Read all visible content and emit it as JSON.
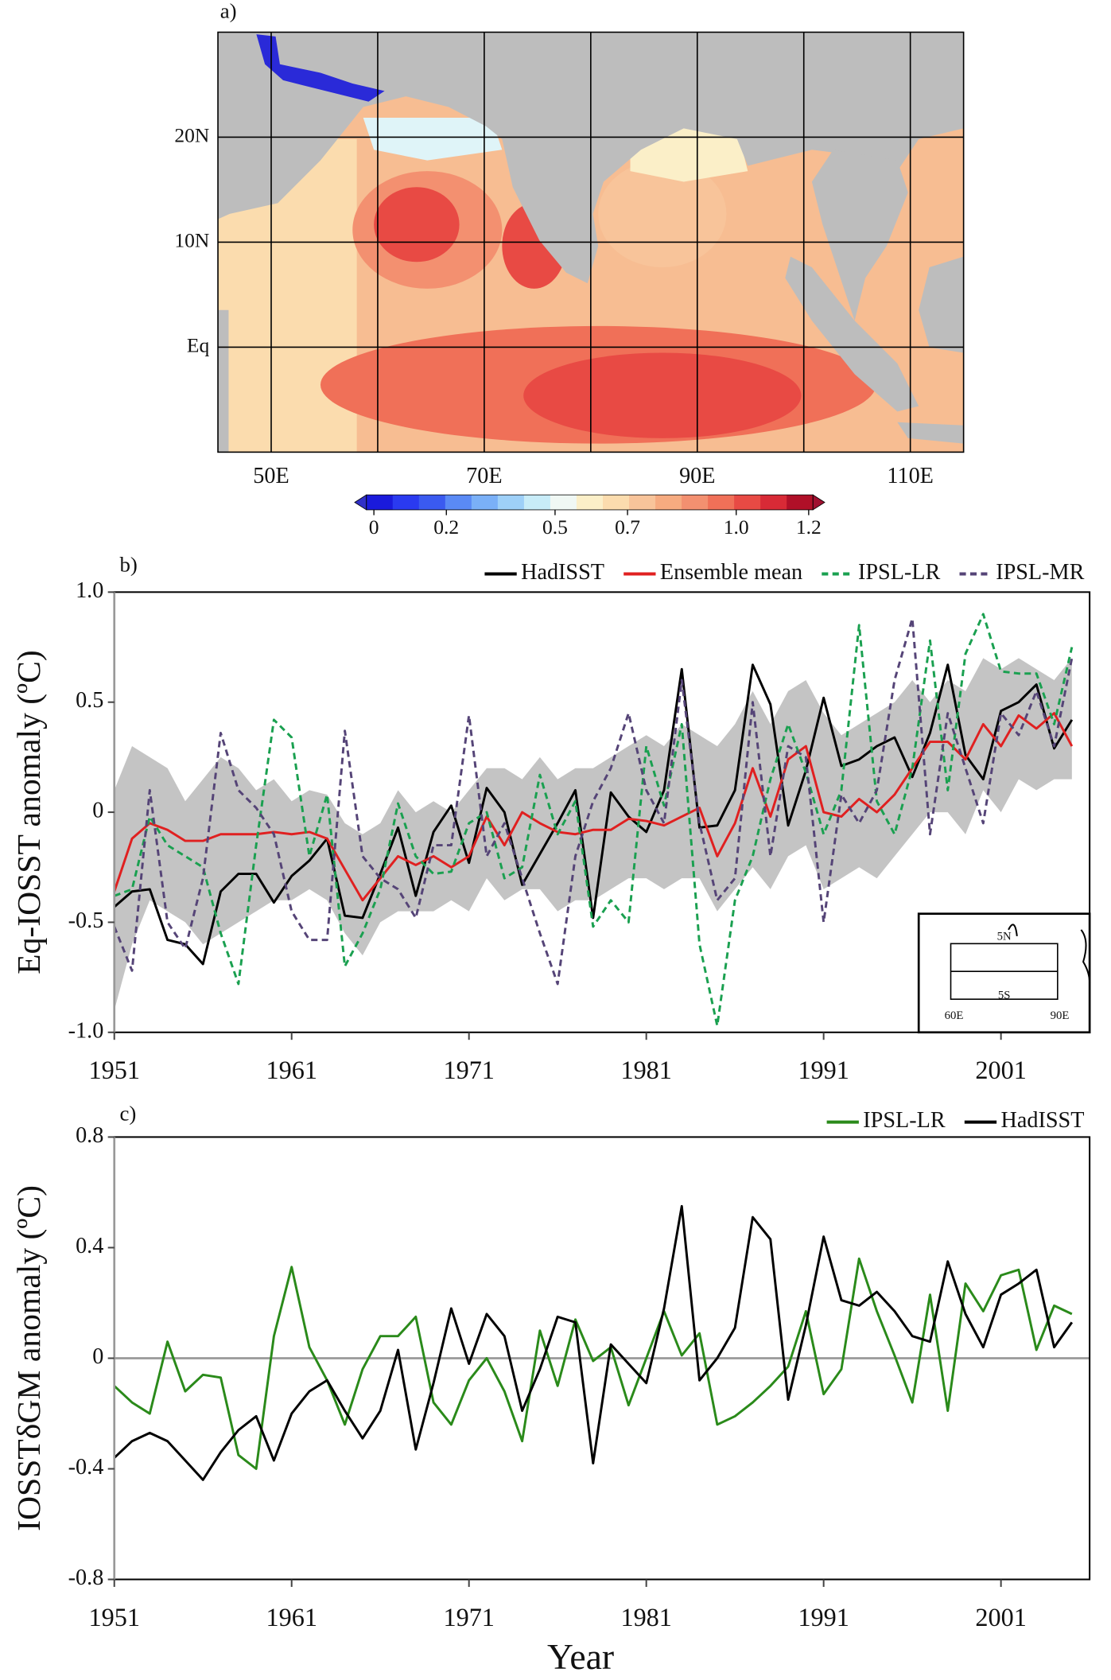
{
  "chart_data": [
    {
      "type": "map",
      "label": "a)",
      "xlim": [
        45,
        115
      ],
      "ylim": [
        -10,
        30
      ],
      "xticks": [
        {
          "value": 50,
          "label": "50E"
        },
        {
          "value": 70,
          "label": "70E"
        },
        {
          "value": 90,
          "label": "90E"
        },
        {
          "value": 110,
          "label": "110E"
        }
      ],
      "yticks": [
        {
          "value": 20,
          "label": "20N"
        },
        {
          "value": 10,
          "label": "10N"
        },
        {
          "value": 0,
          "label": "Eq"
        }
      ],
      "xgrid": [
        60,
        80,
        100
      ],
      "colorbar": {
        "lim": [
          0,
          1.2
        ],
        "ticks": [
          0,
          0.2,
          0.5,
          0.7,
          {
            "value": 1,
            "label": "1.0"
          },
          1.2
        ],
        "colors": [
          "#1a1adc",
          "#2a3af0",
          "#3a5af0",
          "#5a8af5",
          "#7ab0f7",
          "#9ed0f8",
          "#c8ecf8",
          "#f0f8f4",
          "#fbefc8",
          "#fbdcae",
          "#f8c49a",
          "#f6ab80",
          "#f39070",
          "#f07058",
          "#e84a44",
          "#d82a36",
          "#b01028"
        ],
        "under_color": "#3030c8",
        "over_color": "#a01030"
      }
    },
    {
      "type": "line",
      "label": "b)",
      "ylabel": "Eq-IOSST anomaly (ºC)",
      "xlim": [
        1951,
        2006
      ],
      "ylim": [
        -1,
        1
      ],
      "xticks": [
        1951,
        1961,
        1971,
        1981,
        1991,
        2001
      ],
      "yticks": [
        {
          "value": 1,
          "label": "1.0"
        },
        0.5,
        0,
        -0.5,
        {
          "value": -1,
          "label": "-1.0"
        }
      ],
      "x": [
        1951,
        1952,
        1953,
        1954,
        1955,
        1956,
        1957,
        1958,
        1959,
        1960,
        1961,
        1962,
        1963,
        1964,
        1965,
        1966,
        1967,
        1968,
        1969,
        1970,
        1971,
        1972,
        1973,
        1974,
        1975,
        1976,
        1977,
        1978,
        1979,
        1980,
        1981,
        1982,
        1983,
        1984,
        1985,
        1986,
        1987,
        1988,
        1989,
        1990,
        1991,
        1992,
        1993,
        1994,
        1995,
        1996,
        1997,
        1998,
        1999,
        2000,
        2001,
        2002,
        2003,
        2004,
        2005
      ],
      "band": {
        "color": "#c4c4c4",
        "upper": [
          0.1,
          0.3,
          0.25,
          0.2,
          0.05,
          0.15,
          0.25,
          0.2,
          0.1,
          0.15,
          0.05,
          0.1,
          0.08,
          -0.05,
          -0.1,
          -0.05,
          0.1,
          0.0,
          0.05,
          0.0,
          0.1,
          0.2,
          0.2,
          0.15,
          0.25,
          0.15,
          0.2,
          0.2,
          0.25,
          0.3,
          0.35,
          0.3,
          0.4,
          0.35,
          0.3,
          0.4,
          0.55,
          0.4,
          0.55,
          0.6,
          0.45,
          0.35,
          0.4,
          0.45,
          0.5,
          0.6,
          0.5,
          0.6,
          0.55,
          0.7,
          0.65,
          0.7,
          0.65,
          0.6,
          0.7
        ],
        "lower": [
          -0.9,
          -0.6,
          -0.4,
          -0.45,
          -0.5,
          -0.6,
          -0.55,
          -0.5,
          -0.45,
          -0.4,
          -0.4,
          -0.35,
          -0.4,
          -0.55,
          -0.65,
          -0.5,
          -0.45,
          -0.45,
          -0.45,
          -0.4,
          -0.45,
          -0.3,
          -0.4,
          -0.35,
          -0.35,
          -0.45,
          -0.4,
          -0.4,
          -0.35,
          -0.3,
          -0.3,
          -0.35,
          -0.3,
          -0.3,
          -0.45,
          -0.35,
          -0.25,
          -0.35,
          -0.2,
          -0.15,
          -0.35,
          -0.3,
          -0.25,
          -0.3,
          -0.2,
          -0.1,
          0.0,
          0.0,
          -0.1,
          0.1,
          0.0,
          0.15,
          0.1,
          0.15,
          0.15
        ]
      },
      "series": [
        {
          "name": "HadISST",
          "color": "#000000",
          "dash": false,
          "values": [
            -0.43,
            -0.36,
            -0.35,
            -0.58,
            -0.6,
            -0.69,
            -0.36,
            -0.28,
            -0.28,
            -0.41,
            -0.29,
            -0.22,
            -0.12,
            -0.47,
            -0.48,
            -0.28,
            -0.07,
            -0.38,
            -0.09,
            0.03,
            -0.23,
            0.11,
            0.0,
            -0.33,
            -0.19,
            -0.05,
            0.1,
            -0.48,
            0.09,
            -0.02,
            -0.09,
            0.1,
            0.65,
            -0.07,
            -0.06,
            0.1,
            0.67,
            0.49,
            -0.06,
            0.19,
            0.52,
            0.21,
            0.24,
            0.3,
            0.34,
            0.16,
            0.36,
            0.67,
            0.26,
            0.15,
            0.46,
            0.5,
            0.58,
            0.29,
            0.42
          ]
        },
        {
          "name": "Ensemble mean",
          "color": "#e02020",
          "dash": false,
          "values": [
            -0.36,
            -0.12,
            -0.05,
            -0.08,
            -0.13,
            -0.13,
            -0.1,
            -0.1,
            -0.1,
            -0.09,
            -0.1,
            -0.09,
            -0.12,
            -0.26,
            -0.4,
            -0.3,
            -0.2,
            -0.24,
            -0.2,
            -0.25,
            -0.2,
            -0.02,
            -0.15,
            0.0,
            -0.05,
            -0.09,
            -0.1,
            -0.08,
            -0.08,
            -0.03,
            -0.04,
            -0.06,
            -0.02,
            0.02,
            -0.2,
            -0.05,
            0.2,
            -0.02,
            0.24,
            0.3,
            0.0,
            -0.02,
            0.06,
            0.0,
            0.08,
            0.2,
            0.32,
            0.32,
            0.24,
            0.4,
            0.3,
            0.44,
            0.38,
            0.45,
            0.3
          ]
        },
        {
          "name": "IPSL-LR",
          "color": "#1aa050",
          "dash": true,
          "values": [
            -0.38,
            -0.35,
            -0.02,
            -0.15,
            -0.2,
            -0.25,
            -0.55,
            -0.78,
            -0.15,
            0.42,
            0.34,
            -0.2,
            0.08,
            -0.7,
            -0.55,
            -0.35,
            0.04,
            -0.2,
            -0.28,
            -0.27,
            -0.05,
            0.0,
            -0.3,
            -0.25,
            0.17,
            -0.1,
            0.05,
            -0.52,
            -0.4,
            -0.5,
            0.3,
            0.03,
            0.4,
            -0.6,
            -0.97,
            -0.4,
            -0.2,
            0.15,
            0.4,
            0.18,
            -0.1,
            0.1,
            0.85,
            0.05,
            -0.1,
            0.2,
            0.78,
            0.1,
            0.72,
            0.9,
            0.64,
            0.63,
            0.63,
            0.4,
            0.75
          ]
        },
        {
          "name": "IPSL-MR",
          "color": "#554477",
          "dash": true,
          "values": [
            -0.52,
            -0.72,
            0.1,
            -0.5,
            -0.62,
            -0.3,
            0.36,
            0.1,
            0.02,
            -0.1,
            -0.45,
            -0.58,
            -0.58,
            0.37,
            -0.2,
            -0.3,
            -0.35,
            -0.48,
            -0.15,
            -0.15,
            0.44,
            -0.2,
            -0.05,
            -0.3,
            -0.55,
            -0.78,
            -0.2,
            0.05,
            0.2,
            0.45,
            0.1,
            -0.05,
            0.6,
            -0.05,
            -0.4,
            -0.3,
            0.5,
            -0.2,
            0.3,
            0.25,
            -0.5,
            0.08,
            -0.05,
            0.1,
            0.6,
            0.88,
            -0.1,
            0.45,
            0.2,
            -0.05,
            0.45,
            0.35,
            0.55,
            0.3,
            0.7
          ]
        }
      ],
      "inset": {
        "labels": [
          "5N",
          "5S",
          "60E",
          "90E"
        ]
      }
    },
    {
      "type": "line",
      "label": "c)",
      "ylabel": "IOSSTδGM anomaly (ºC)",
      "xlabel": "Year",
      "zero_line": true,
      "xlim": [
        1951,
        2006
      ],
      "ylim": [
        -0.8,
        0.8
      ],
      "xticks": [
        1951,
        1961,
        1971,
        1981,
        1991,
        2001
      ],
      "yticks": [
        0.8,
        0.4,
        0,
        -0.4,
        -0.8
      ],
      "x": [
        1951,
        1952,
        1953,
        1954,
        1955,
        1956,
        1957,
        1958,
        1959,
        1960,
        1961,
        1962,
        1963,
        1964,
        1965,
        1966,
        1967,
        1968,
        1969,
        1970,
        1971,
        1972,
        1973,
        1974,
        1975,
        1976,
        1977,
        1978,
        1979,
        1980,
        1981,
        1982,
        1983,
        1984,
        1985,
        1986,
        1987,
        1988,
        1989,
        1990,
        1991,
        1992,
        1993,
        1994,
        1995,
        1996,
        1997,
        1998,
        1999,
        2000,
        2001,
        2002,
        2003,
        2004,
        2005
      ],
      "series": [
        {
          "name": "IPSL-LR",
          "color": "#2a8a1a",
          "dash": false,
          "values": [
            -0.1,
            -0.16,
            -0.2,
            0.06,
            -0.12,
            -0.06,
            -0.07,
            -0.35,
            -0.4,
            0.08,
            0.33,
            0.04,
            -0.08,
            -0.24,
            -0.04,
            0.08,
            0.08,
            0.15,
            -0.16,
            -0.24,
            -0.08,
            0.0,
            -0.12,
            -0.3,
            0.1,
            -0.1,
            0.14,
            -0.01,
            0.04,
            -0.17,
            0.0,
            0.17,
            0.01,
            0.09,
            -0.24,
            -0.21,
            -0.16,
            -0.1,
            -0.03,
            0.17,
            -0.13,
            -0.04,
            0.36,
            0.17,
            0.01,
            -0.16,
            0.23,
            -0.19,
            0.27,
            0.17,
            0.3,
            0.32,
            0.03,
            0.19,
            0.16
          ]
        },
        {
          "name": "HadISST",
          "color": "#000000",
          "dash": false,
          "values": [
            -0.36,
            -0.3,
            -0.27,
            -0.3,
            -0.37,
            -0.44,
            -0.34,
            -0.26,
            -0.21,
            -0.37,
            -0.2,
            -0.12,
            -0.08,
            -0.19,
            -0.29,
            -0.19,
            0.03,
            -0.33,
            -0.09,
            0.18,
            -0.02,
            0.16,
            0.08,
            -0.19,
            -0.04,
            0.15,
            0.13,
            -0.38,
            0.05,
            -0.02,
            -0.09,
            0.18,
            0.55,
            -0.08,
            0.0,
            0.11,
            0.51,
            0.43,
            -0.15,
            0.12,
            0.44,
            0.21,
            0.19,
            0.24,
            0.17,
            0.08,
            0.06,
            0.35,
            0.16,
            0.04,
            0.23,
            0.27,
            0.32,
            0.04,
            0.13
          ]
        }
      ]
    }
  ]
}
